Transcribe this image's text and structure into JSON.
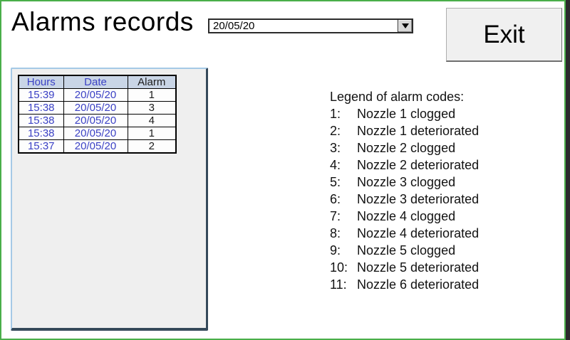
{
  "page": {
    "title": "Alarms records"
  },
  "toolbar": {
    "date_select": {
      "value": "20/05/20"
    },
    "exit_label": "Exit"
  },
  "alarms_table": {
    "columns": [
      "Hours",
      "Date",
      "Alarm"
    ],
    "rows": [
      {
        "hours": "15:39",
        "date": "20/05/20",
        "alarm": "1"
      },
      {
        "hours": "15:38",
        "date": "20/05/20",
        "alarm": "3"
      },
      {
        "hours": "15:38",
        "date": "20/05/20",
        "alarm": "4"
      },
      {
        "hours": "15:38",
        "date": "20/05/20",
        "alarm": "1"
      },
      {
        "hours": "15:37",
        "date": "20/05/20",
        "alarm": "2"
      }
    ]
  },
  "legend": {
    "title": "Legend of alarm codes:",
    "items": [
      {
        "num": "1:",
        "text": "Nozzle 1 clogged"
      },
      {
        "num": "2:",
        "text": "Nozzle 1 deteriorated"
      },
      {
        "num": "3:",
        "text": "Nozzle 2 clogged"
      },
      {
        "num": "4:",
        "text": "Nozzle 2 deteriorated"
      },
      {
        "num": "5:",
        "text": "Nozzle 3 clogged"
      },
      {
        "num": "6:",
        "text": "Nozzle 3 deteriorated"
      },
      {
        "num": "7:",
        "text": "Nozzle 4 clogged"
      },
      {
        "num": "8:",
        "text": "Nozzle 4 deteriorated"
      },
      {
        "num": "9:",
        "text": "Nozzle 5 clogged"
      },
      {
        "num": "10:",
        "text": "Nozzle 5 deteriorated"
      },
      {
        "num": "11:",
        "text": "Nozzle 6 deteriorated"
      }
    ]
  },
  "colors": {
    "outer_border_green": "#4aae4a",
    "right_edge_dark": "#2c292d",
    "panel_background": "#efefef",
    "panel_border_light": "#a5c9e6",
    "panel_border_shadow": "#35495a",
    "table_header_background": "#c9d5e6",
    "table_blue_text": "#3b41c5",
    "button_face": "#f0f0f0"
  }
}
